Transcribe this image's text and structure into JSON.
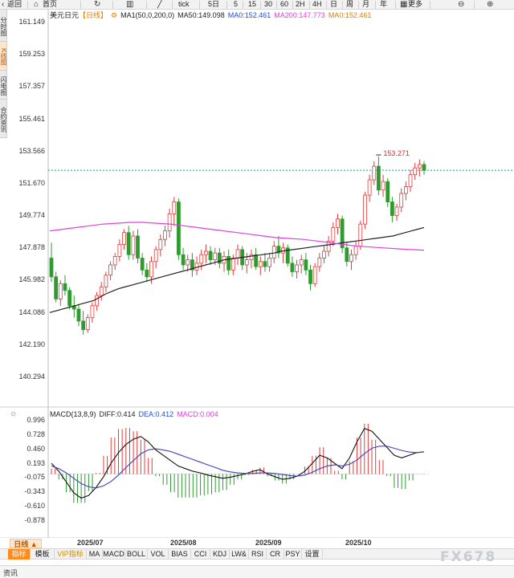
{
  "toolbar": {
    "back": "返回",
    "home": "首页",
    "tick": "tick",
    "periods": [
      "5日",
      "5",
      "15",
      "30",
      "60",
      "2H",
      "4H",
      "日",
      "周",
      "月",
      "年"
    ],
    "more": "更多"
  },
  "left_tabs": [
    "分时图",
    "K线图",
    "闪电图",
    "合约资讯"
  ],
  "legend": {
    "symbol": "美元日元",
    "period": "【日线】",
    "ma_params": "MA1(50,0,200,0)",
    "ma50": "MA50:149.098",
    "ma0a": "MA0:152.461",
    "ma200": "MA200:147.773",
    "ma0b": "MA0:152.461"
  },
  "macd_legend": {
    "name": "MACD(13,8,9)",
    "diff": "DIFF:0.414",
    "dea": "DEA:0.412",
    "macd": "MACD:0.004"
  },
  "price_axis": [
    "161.149",
    "159.253",
    "157.357",
    "155.461",
    "153.566",
    "151.670",
    "149.774",
    "147.878",
    "145.982",
    "144.086",
    "142.190",
    "140.294"
  ],
  "macd_axis": [
    "0.996",
    "0.728",
    "0.460",
    "0.193",
    "-0.075",
    "-0.343",
    "-0.610",
    "-0.878"
  ],
  "dates": [
    "2025/07",
    "2025/08",
    "2025/09",
    "2025/10"
  ],
  "high_marker": "153.271",
  "period_button": "日线 ▲",
  "indicator_tabs": [
    "指标",
    "模板",
    "VIP指标",
    "MA",
    "MACD",
    "BOLL",
    "VOL",
    "BIAS",
    "CCI",
    "KDJ",
    "LW&",
    "RSI",
    "CR",
    "PSY",
    "设置"
  ],
  "status": "资讯",
  "watermark": "FX678",
  "colors": {
    "up": "#e23b3b",
    "down": "#2e9b2e",
    "ma50": "#222222",
    "ma200": "#e040e0",
    "dea": "#4040c0",
    "current_line": "#1fa0a0",
    "macd_value": "#e040e0"
  },
  "chart_data": {
    "type": "candlestick",
    "price_range": [
      140.294,
      161.149
    ],
    "macd_range": [
      -0.878,
      0.996
    ],
    "current_price": 152.461,
    "candles": [
      [
        147.3,
        148.2,
        145.9,
        146.2
      ],
      [
        146.2,
        146.5,
        144.7,
        144.9
      ],
      [
        144.9,
        146.0,
        144.5,
        145.8
      ],
      [
        145.8,
        146.3,
        145.1,
        145.4
      ],
      [
        145.4,
        145.6,
        144.3,
        144.5
      ],
      [
        144.5,
        145.1,
        143.8,
        144.3
      ],
      [
        144.3,
        144.6,
        143.3,
        143.6
      ],
      [
        143.6,
        144.2,
        142.8,
        143.1
      ],
      [
        143.1,
        144.0,
        142.9,
        143.8
      ],
      [
        143.8,
        144.7,
        143.5,
        144.5
      ],
      [
        144.5,
        145.3,
        144.2,
        145.1
      ],
      [
        145.1,
        145.9,
        144.8,
        145.6
      ],
      [
        145.6,
        146.5,
        145.3,
        146.3
      ],
      [
        146.3,
        147.1,
        146.0,
        146.9
      ],
      [
        146.9,
        147.6,
        146.6,
        147.4
      ],
      [
        147.4,
        148.4,
        147.1,
        148.1
      ],
      [
        148.1,
        149.0,
        147.8,
        148.8
      ],
      [
        148.8,
        149.2,
        147.2,
        147.5
      ],
      [
        147.5,
        148.9,
        147.2,
        148.6
      ],
      [
        148.6,
        149.0,
        147.0,
        147.3
      ],
      [
        147.3,
        147.6,
        146.3,
        146.6
      ],
      [
        146.6,
        147.0,
        145.9,
        146.2
      ],
      [
        146.2,
        147.4,
        145.8,
        147.1
      ],
      [
        147.1,
        148.0,
        146.7,
        147.8
      ],
      [
        147.8,
        148.7,
        147.4,
        148.4
      ],
      [
        148.4,
        149.2,
        148.0,
        148.9
      ],
      [
        148.9,
        150.2,
        148.5,
        149.9
      ],
      [
        149.9,
        150.9,
        149.2,
        150.6
      ],
      [
        150.6,
        150.8,
        147.2,
        147.5
      ],
      [
        147.5,
        147.9,
        146.6,
        146.9
      ],
      [
        146.9,
        147.5,
        146.5,
        147.2
      ],
      [
        147.2,
        147.6,
        146.2,
        146.6
      ],
      [
        146.6,
        147.4,
        146.3,
        147.0
      ],
      [
        147.0,
        147.8,
        146.6,
        147.5
      ],
      [
        147.5,
        148.1,
        147.0,
        147.7
      ],
      [
        147.7,
        148.0,
        146.9,
        147.2
      ],
      [
        147.2,
        147.9,
        146.9,
        147.6
      ],
      [
        147.6,
        147.9,
        146.7,
        147.0
      ],
      [
        147.0,
        147.7,
        146.5,
        147.4
      ],
      [
        147.4,
        147.8,
        146.3,
        146.6
      ],
      [
        146.6,
        147.5,
        146.3,
        147.3
      ],
      [
        147.3,
        148.1,
        146.9,
        147.8
      ],
      [
        147.8,
        148.0,
        146.6,
        146.9
      ],
      [
        146.9,
        147.6,
        146.4,
        147.2
      ],
      [
        147.2,
        147.8,
        146.7,
        147.5
      ],
      [
        147.5,
        147.9,
        146.6,
        146.8
      ],
      [
        146.8,
        147.4,
        146.3,
        147.1
      ],
      [
        147.1,
        147.6,
        146.5,
        146.8
      ],
      [
        146.8,
        147.6,
        146.5,
        147.3
      ],
      [
        147.3,
        148.3,
        147.0,
        148.0
      ],
      [
        148.0,
        148.6,
        147.3,
        147.6
      ],
      [
        147.6,
        148.2,
        147.0,
        147.9
      ],
      [
        147.9,
        148.1,
        146.8,
        147.0
      ],
      [
        147.0,
        147.4,
        146.2,
        146.5
      ],
      [
        146.5,
        147.2,
        146.1,
        146.9
      ],
      [
        146.9,
        147.5,
        146.4,
        147.2
      ],
      [
        147.2,
        147.6,
        146.3,
        146.6
      ],
      [
        146.6,
        146.9,
        145.4,
        145.8
      ],
      [
        145.8,
        147.0,
        145.6,
        146.8
      ],
      [
        146.8,
        147.6,
        146.5,
        147.3
      ],
      [
        147.3,
        148.0,
        147.0,
        147.7
      ],
      [
        147.7,
        148.6,
        147.4,
        148.3
      ],
      [
        148.3,
        149.4,
        148.0,
        149.1
      ],
      [
        149.1,
        149.9,
        148.7,
        149.6
      ],
      [
        149.6,
        149.8,
        147.6,
        147.9
      ],
      [
        147.9,
        148.2,
        146.8,
        147.1
      ],
      [
        147.1,
        147.8,
        146.6,
        147.5
      ],
      [
        147.5,
        148.3,
        147.2,
        148.0
      ],
      [
        148.0,
        149.5,
        147.8,
        149.3
      ],
      [
        149.3,
        151.2,
        149.0,
        151.0
      ],
      [
        151.0,
        152.2,
        150.6,
        151.9
      ],
      [
        151.9,
        153.0,
        151.6,
        152.7
      ],
      [
        152.7,
        153.27,
        151.0,
        151.3
      ],
      [
        151.3,
        152.2,
        150.9,
        151.8
      ],
      [
        151.8,
        152.0,
        150.3,
        150.6
      ],
      [
        150.6,
        150.9,
        149.4,
        149.8
      ],
      [
        149.8,
        150.5,
        149.5,
        150.3
      ],
      [
        150.3,
        151.4,
        150.0,
        151.1
      ],
      [
        151.1,
        151.8,
        150.7,
        151.5
      ],
      [
        151.5,
        152.5,
        151.2,
        152.2
      ],
      [
        152.2,
        152.9,
        151.9,
        152.6
      ],
      [
        152.6,
        153.1,
        152.1,
        152.8
      ],
      [
        152.8,
        153.0,
        152.2,
        152.46
      ]
    ],
    "ma50": [
      144.1,
      144.2,
      144.3,
      144.4,
      144.5,
      144.6,
      144.7,
      144.8,
      145.0,
      145.2,
      145.35,
      145.5,
      145.6,
      145.7,
      145.8,
      145.9,
      146.0,
      146.1,
      146.2,
      146.3,
      146.4,
      146.5,
      146.6,
      146.7,
      146.8,
      146.9,
      147.0,
      147.1,
      147.2,
      147.25,
      147.3,
      147.35,
      147.4,
      147.45,
      147.5,
      147.55,
      147.6,
      147.7,
      147.75,
      147.8,
      147.85,
      147.9,
      147.95,
      148.0,
      148.05,
      148.1,
      148.15,
      148.2,
      148.25,
      148.3,
      148.35,
      148.4,
      148.45,
      148.5,
      148.55,
      148.6,
      148.7,
      148.8,
      148.9,
      149.0,
      149.1
    ],
    "ma200": [
      148.9,
      149.0,
      149.1,
      149.2,
      149.3,
      149.35,
      149.4,
      149.4,
      149.35,
      149.3,
      149.2,
      149.1,
      149.0,
      148.9,
      148.8,
      148.7,
      148.6,
      148.5,
      148.45,
      148.4,
      148.3,
      148.2,
      148.1,
      148.0,
      147.95,
      147.9,
      147.85,
      147.8,
      147.77
    ],
    "dif": [
      0.2,
      0.05,
      -0.15,
      -0.35,
      -0.45,
      -0.4,
      -0.25,
      -0.05,
      0.2,
      0.4,
      0.55,
      0.65,
      0.7,
      0.6,
      0.45,
      0.35,
      0.25,
      0.15,
      0.1,
      0.05,
      0.02,
      -0.02,
      -0.05,
      -0.08,
      -0.06,
      -0.03,
      0.0,
      0.05,
      0.08,
      0.0,
      -0.05,
      -0.1,
      -0.08,
      -0.04,
      0.05,
      0.2,
      0.35,
      0.3,
      0.2,
      0.1,
      0.3,
      0.6,
      0.85,
      0.8,
      0.65,
      0.5,
      0.35,
      0.3,
      0.35,
      0.4,
      0.414
    ],
    "dea": [
      0.15,
      0.1,
      0.02,
      -0.08,
      -0.18,
      -0.24,
      -0.26,
      -0.22,
      -0.14,
      -0.02,
      0.12,
      0.25,
      0.38,
      0.45,
      0.47,
      0.45,
      0.42,
      0.37,
      0.32,
      0.27,
      0.22,
      0.17,
      0.12,
      0.07,
      0.04,
      0.02,
      0.01,
      0.01,
      0.02,
      0.02,
      0.01,
      -0.01,
      -0.03,
      -0.04,
      -0.02,
      0.03,
      0.1,
      0.15,
      0.17,
      0.15,
      0.18,
      0.26,
      0.38,
      0.48,
      0.52,
      0.52,
      0.48,
      0.44,
      0.41,
      0.4,
      0.412
    ]
  }
}
